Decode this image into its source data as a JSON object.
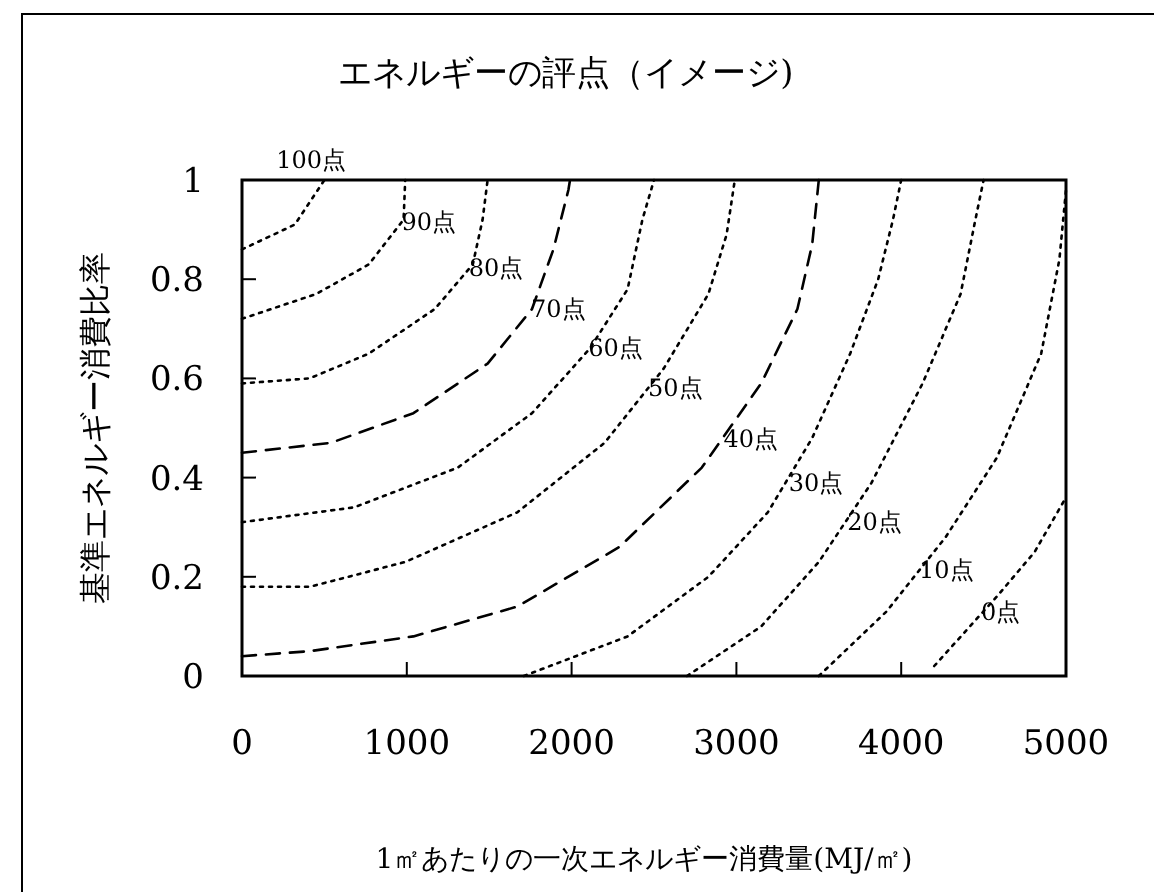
{
  "chart_data": {
    "type": "line",
    "title": "エネルギーの評点（イメージ)",
    "xlabel": "1㎡あたりの一次エネルギー消費量(MJ/㎡)",
    "ylabel": "基準エネルギー消費比率",
    "xlim": [
      0,
      5000
    ],
    "ylim": [
      0,
      1
    ],
    "xticks": [
      0,
      1000,
      2000,
      3000,
      4000,
      5000
    ],
    "yticks": [
      0,
      {
        "value": 0.2,
        "label": "0.2"
      },
      {
        "value": 0.4,
        "label": "0.4"
      },
      {
        "value": 0.6,
        "label": "0.6"
      },
      {
        "value": 0.8,
        "label": "0.8"
      },
      1
    ],
    "grid": false,
    "marker": "none",
    "series": [
      {
        "name": "100点",
        "color": "#000000",
        "line_style": "dotted",
        "x": [
          0,
          320,
          500
        ],
        "values": [
          0.86,
          0.91,
          1
        ]
      },
      {
        "name": "90点",
        "color": "#000000",
        "line_style": "dotted",
        "x": [
          0,
          450,
          770,
          980,
          990
        ],
        "values": [
          0.72,
          0.77,
          0.83,
          0.92,
          1
        ]
      },
      {
        "name": "80点",
        "color": "#000000",
        "line_style": "dotted",
        "x": [
          0,
          410,
          770,
          1170,
          1400,
          1460,
          1490
        ],
        "values": [
          0.59,
          0.6,
          0.65,
          0.74,
          0.83,
          0.92,
          1
        ]
      },
      {
        "name": "70点",
        "color": "#000000",
        "line_style": "dashed",
        "x": [
          0,
          540,
          1040,
          1490,
          1760,
          1890,
          1980,
          1990
        ],
        "values": [
          0.45,
          0.47,
          0.53,
          0.63,
          0.74,
          0.86,
          0.98,
          1
        ]
      },
      {
        "name": "60点",
        "color": "#000000",
        "line_style": "dotted",
        "x": [
          0,
          680,
          1310,
          1760,
          2110,
          2340,
          2430,
          2500
        ],
        "values": [
          0.31,
          0.34,
          0.42,
          0.53,
          0.66,
          0.78,
          0.92,
          1
        ]
      },
      {
        "name": "50点",
        "color": "#000000",
        "line_style": "dotted",
        "x": [
          0,
          410,
          990,
          1670,
          2200,
          2560,
          2830,
          2940,
          2990
        ],
        "values": [
          0.18,
          0.18,
          0.23,
          0.33,
          0.47,
          0.62,
          0.77,
          0.89,
          1
        ]
      },
      {
        "name": "40点",
        "color": "#000000",
        "line_style": "dashed",
        "x": [
          0,
          410,
          1040,
          1670,
          2290,
          2790,
          3150,
          3370,
          3460,
          3500
        ],
        "values": [
          0.04,
          0.05,
          0.08,
          0.14,
          0.26,
          0.42,
          0.59,
          0.74,
          0.87,
          1
        ]
      },
      {
        "name": "30点",
        "color": "#000000",
        "line_style": "dotted",
        "x": [
          1710,
          2340,
          2830,
          3190,
          3460,
          3690,
          3860,
          3950,
          4000
        ],
        "values": [
          0,
          0.08,
          0.2,
          0.33,
          0.48,
          0.65,
          0.8,
          0.92,
          1
        ]
      },
      {
        "name": "20点",
        "color": "#000000",
        "line_style": "dotted",
        "x": [
          2700,
          3150,
          3500,
          3820,
          4130,
          4360,
          4450,
          4500
        ],
        "values": [
          0,
          0.1,
          0.23,
          0.39,
          0.59,
          0.77,
          0.92,
          1
        ]
      },
      {
        "name": "10点",
        "color": "#000000",
        "line_style": "dotted",
        "x": [
          3500,
          3910,
          4270,
          4580,
          4850,
          4960,
          5000
        ],
        "values": [
          0,
          0.13,
          0.28,
          0.44,
          0.65,
          0.84,
          0.98
        ]
      },
      {
        "name": "0点",
        "color": "#000000",
        "line_style": "dotted",
        "x": [
          4200,
          4580,
          4810,
          5000
        ],
        "values": [
          0.02,
          0.16,
          0.25,
          0.36
        ]
      }
    ]
  }
}
